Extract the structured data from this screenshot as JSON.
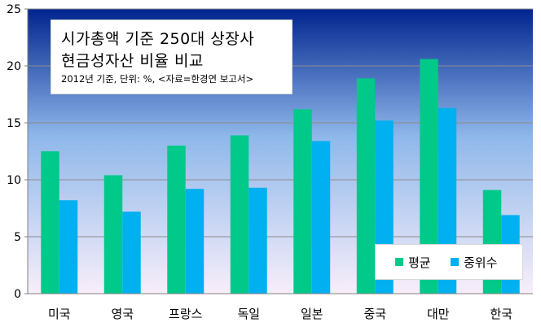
{
  "chart_data": {
    "type": "bar",
    "title_lines": [
      "시가총액 기준 250대 상장사",
      "현금성자산 비율 비교"
    ],
    "subtitle": "2012년 기준, 단위: %, <자료=한경연 보고서>",
    "categories": [
      "미국",
      "영국",
      "프랑스",
      "독일",
      "일본",
      "중국",
      "대만",
      "한국"
    ],
    "series": [
      {
        "name": "평균",
        "color": "#00c98a",
        "values": [
          12.5,
          10.4,
          13.0,
          13.9,
          16.2,
          18.9,
          20.6,
          9.1
        ]
      },
      {
        "name": "중위수",
        "color": "#00b0f0",
        "values": [
          8.2,
          7.2,
          9.2,
          9.3,
          13.4,
          15.2,
          16.3,
          6.9
        ]
      }
    ],
    "yticks": [
      "0",
      "5",
      "10",
      "15",
      "20",
      "25"
    ],
    "ylim": [
      0,
      25
    ],
    "grid": true,
    "legend_position": "bottom-right"
  }
}
